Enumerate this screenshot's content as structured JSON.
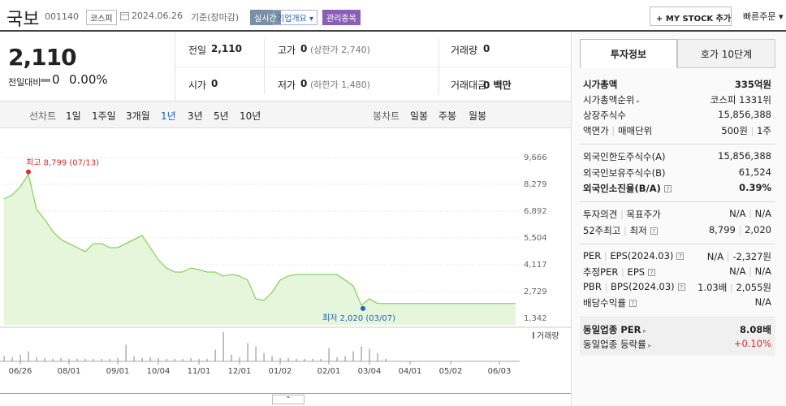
{
  "header": {
    "name": "국보",
    "code": "001140",
    "market": "코스피",
    "date": "2024.06.26",
    "basis": "기준(장마감)",
    "realtime": "실시간",
    "company": "기업개요",
    "status": "관리종목",
    "mystock": "MY STOCK 추가",
    "quick_order": "빠른주문"
  },
  "price": {
    "current": "2,110",
    "change_label": "전일대비",
    "change": "0",
    "change_rate": "0.00%"
  },
  "summary": [
    [
      {
        "label": "전일",
        "value": "2,110"
      },
      {
        "label": "고가",
        "value": "0",
        "note": "(상한가 2,740)"
      },
      {
        "label": "거래량",
        "value": "0"
      }
    ],
    [
      {
        "label": "시가",
        "value": "0"
      },
      {
        "label": "저가",
        "value": "0",
        "note": "(하한가 1,480)"
      },
      {
        "label": "거래대금",
        "value": "0 백만"
      }
    ]
  ],
  "chart_tabs": {
    "line_label": "선차트",
    "line": [
      "1일",
      "1주일",
      "3개월",
      "1년",
      "3년",
      "5년",
      "10년"
    ],
    "selected": 3,
    "candle_label": "봉차트",
    "candle": [
      "일봉",
      "주봉",
      "월봉"
    ]
  },
  "chart_data": {
    "type": "line",
    "color": "#6ccb3c",
    "area_color": "#e6f6da",
    "categories": [
      null,
      null,
      "06/26",
      null,
      null,
      null,
      null,
      null,
      "08/01",
      null,
      null,
      null,
      null,
      null,
      "09/01",
      null,
      null,
      null,
      null,
      "10/04",
      null,
      null,
      null,
      null,
      "11/01",
      null,
      null,
      null,
      null,
      "12/01",
      null,
      null,
      null,
      null,
      "01/02",
      null,
      null,
      null,
      null,
      null,
      "02/01",
      null,
      null,
      null,
      null,
      "03/04",
      null,
      null,
      null,
      null,
      "04/01",
      null,
      null,
      null,
      null,
      "05/02",
      null,
      null,
      null,
      null,
      null,
      "06/03",
      null,
      null
    ],
    "values": [
      7520,
      7730,
      8150,
      8799,
      6980,
      6470,
      5840,
      5420,
      5210,
      5000,
      4790,
      5210,
      5210,
      5000,
      5000,
      5210,
      5420,
      5630,
      5000,
      4370,
      3950,
      3740,
      3740,
      3950,
      3860,
      3740,
      3740,
      3530,
      3610,
      3530,
      3320,
      2350,
      2270,
      2690,
      3320,
      3530,
      3610,
      3610,
      3610,
      3610,
      3610,
      3610,
      3320,
      3020,
      2020,
      2350,
      2110,
      2110,
      2110,
      2110,
      2110,
      2110,
      2110,
      2110,
      2110,
      2110,
      2110,
      2110,
      2110,
      2110,
      2110,
      2110,
      2110,
      2110
    ],
    "ylim": [
      1342,
      9666
    ],
    "yticks": [
      {
        "value": 1342,
        "label": "1,342"
      },
      {
        "value": 2729,
        "label": "2,729"
      },
      {
        "value": 4117,
        "label": "4,117"
      },
      {
        "value": 5504,
        "label": "5,504"
      },
      {
        "value": 6892,
        "label": "6,892"
      },
      {
        "value": 8279,
        "label": "8,279"
      },
      {
        "value": 9666,
        "label": "9,666"
      }
    ],
    "grid": true,
    "high": {
      "text": "최고 8,799 (07/13)",
      "color": "#e0292b"
    },
    "low": {
      "text": "최저 2,020 (03/07)",
      "color": "#1f5fbf"
    },
    "volume_label": "거래량",
    "volume_color": "#9a9a9a",
    "volume": [
      6,
      5,
      8,
      12,
      5,
      4,
      3,
      4,
      3,
      3,
      3,
      3,
      3,
      3,
      4,
      20,
      6,
      4,
      5,
      4,
      3,
      3,
      3,
      4,
      3,
      3,
      14,
      35,
      8,
      5,
      22,
      18,
      10,
      6,
      4,
      4,
      3,
      3,
      3,
      3,
      16,
      5,
      6,
      12,
      18,
      15,
      10,
      3,
      0,
      0,
      0,
      0,
      0,
      0,
      0,
      0,
      0,
      0,
      0,
      0,
      0,
      0,
      0,
      0
    ]
  },
  "info_tabs": [
    "투자정보",
    "호가 10단계"
  ],
  "info": [
    [
      {
        "label": "시가총액",
        "value": "335억원",
        "bold": true
      },
      {
        "label": "시가총액순위",
        "value": "코스피 1331위",
        "link": true
      },
      {
        "label": "상장주식수",
        "value": "15,856,388"
      },
      {
        "label": "액면가",
        "label2": "매매단위",
        "value": "500원",
        "value2": "1주"
      }
    ],
    [
      {
        "label": "외국인한도주식수(A)",
        "value": "15,856,388"
      },
      {
        "label": "외국인보유주식수(B)",
        "value": "61,524"
      },
      {
        "label": "외국인소진율(B/A)",
        "value": "0.39%",
        "bold": true,
        "help": true
      }
    ],
    [
      {
        "label": "투자의견",
        "label2": "목표주가",
        "value": "N/A",
        "value2": "N/A"
      },
      {
        "label": "52주최고",
        "label2": "최저",
        "value": "8,799",
        "value2": "2,020",
        "help": true
      }
    ],
    [
      {
        "label": "PER",
        "label2": "EPS(2024.03)",
        "value": "N/A",
        "value2": "-2,327원",
        "help": true
      },
      {
        "label": "추정PER",
        "label2": "EPS",
        "value": "N/A",
        "value2": "N/A",
        "help": true
      },
      {
        "label": "PBR",
        "label2": "BPS(2024.03)",
        "value": "1.03배",
        "value2": "2,055원",
        "help": true
      },
      {
        "label": "배당수익률",
        "value": "N/A",
        "help": true
      }
    ],
    [
      {
        "label": "동일업종 PER",
        "value": "8.08배",
        "bold": true,
        "link": true
      },
      {
        "label": "동일업종 등락률",
        "value": "+0.10%",
        "value_color": "#e0292b",
        "link": true
      }
    ]
  ]
}
